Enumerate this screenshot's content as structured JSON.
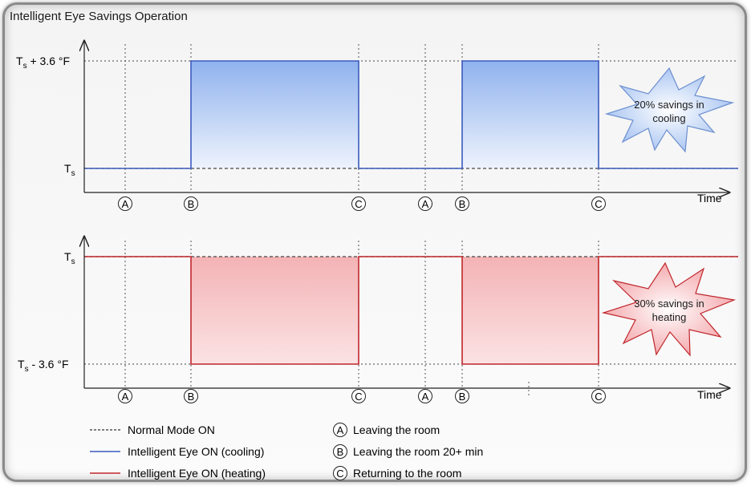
{
  "title": "Intelligent Eye Savings Operation",
  "top_chart": {
    "y_upper_label_main": "T",
    "y_upper_label_sub": "s",
    "y_upper_label_suffix": " + 3.6 °F",
    "y_lower_label_main": "T",
    "y_lower_label_sub": "s",
    "x_label": "Time",
    "markers": [
      "A",
      "B",
      "C",
      "A",
      "B",
      "C"
    ],
    "burst_text": [
      "20% savings in",
      "cooling"
    ],
    "color": "#3b5bbf"
  },
  "bottom_chart": {
    "y_upper_label_main": "T",
    "y_upper_label_sub": "s",
    "y_lower_label_main": "T",
    "y_lower_label_sub": "s",
    "y_lower_label_suffix": " - 3.6 °F",
    "x_label": "Time",
    "markers": [
      "A",
      "B",
      "C",
      "A",
      "B",
      "C"
    ],
    "burst_text": [
      "30% savings in",
      "heating"
    ],
    "color": "#c0262b"
  },
  "legend": {
    "normal_mode": "Normal Mode ON",
    "ie_cooling": "Intelligent Eye ON (cooling)",
    "ie_heating": "Intelligent Eye ON (heating)",
    "a_label": "Leaving the room",
    "b_label": "Leaving the room 20+ min",
    "c_label": "Returning to the room",
    "a_letter": "A",
    "b_letter": "B",
    "c_letter": "C"
  }
}
